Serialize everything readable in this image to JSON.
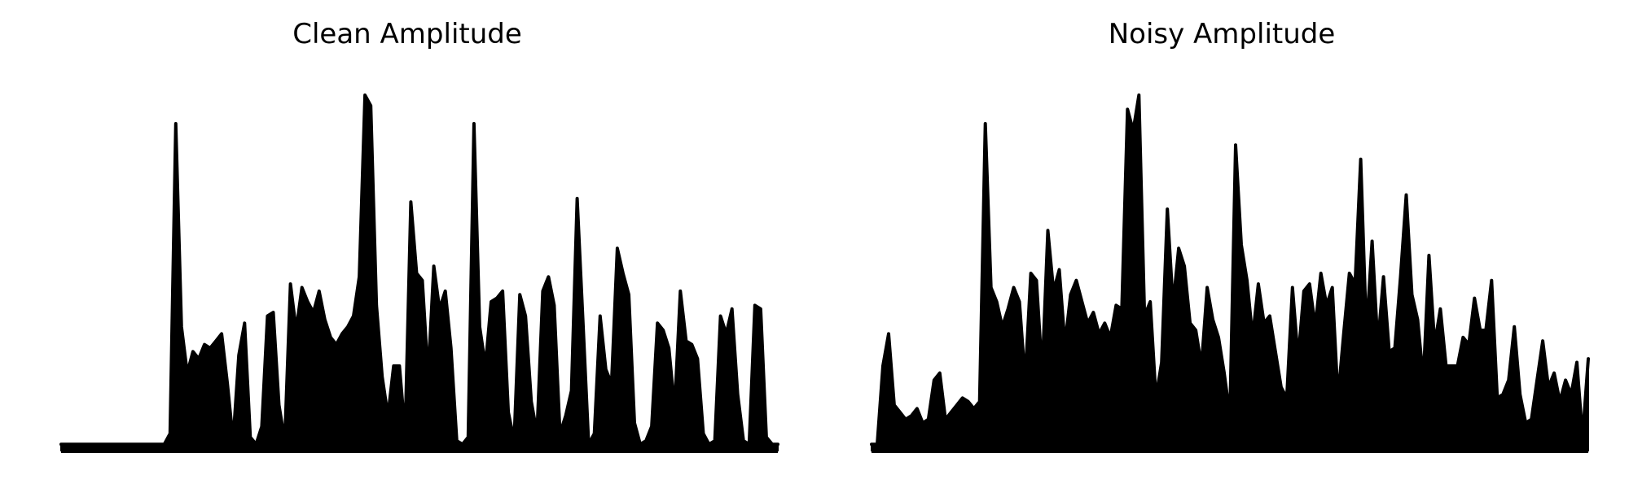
{
  "chart_data": [
    {
      "type": "line",
      "title": "Clean Amplitude",
      "xlabel": "",
      "ylabel": "",
      "axes_visible": false,
      "grid": false,
      "color": "#000000",
      "series": [
        {
          "values": [
            0.02,
            0.02,
            0.02,
            0.02,
            0.02,
            0.02,
            0.02,
            0.02,
            0.02,
            0.02,
            0.02,
            0.02,
            0.02,
            0.02,
            0.02,
            0.02,
            0.02,
            0.02,
            0.02,
            0.05,
            0.92,
            0.35,
            0.22,
            0.28,
            0.26,
            0.3,
            0.29,
            0.31,
            0.33,
            0.19,
            0.03,
            0.27,
            0.36,
            0.04,
            0.02,
            0.07,
            0.38,
            0.39,
            0.13,
            0.03,
            0.47,
            0.34,
            0.46,
            0.42,
            0.39,
            0.45,
            0.37,
            0.32,
            0.3,
            0.33,
            0.35,
            0.38,
            0.49,
            1.0,
            0.97,
            0.41,
            0.21,
            0.1,
            0.24,
            0.24,
            0.05,
            0.7,
            0.5,
            0.48,
            0.21,
            0.52,
            0.4,
            0.45,
            0.29,
            0.03,
            0.02,
            0.04,
            0.92,
            0.35,
            0.24,
            0.42,
            0.43,
            0.45,
            0.11,
            0.03,
            0.44,
            0.38,
            0.14,
            0.05,
            0.45,
            0.49,
            0.41,
            0.05,
            0.1,
            0.17,
            0.71,
            0.37,
            0.02,
            0.05,
            0.38,
            0.23,
            0.19,
            0.57,
            0.5,
            0.44,
            0.08,
            0.02,
            0.03,
            0.07,
            0.36,
            0.34,
            0.29,
            0.12,
            0.45,
            0.31,
            0.3,
            0.26,
            0.05,
            0.02,
            0.03,
            0.38,
            0.33,
            0.4,
            0.16,
            0.03,
            0.02,
            0.41,
            0.4,
            0.04,
            0.02,
            0.02
          ]
        }
      ],
      "ylim": [
        0,
        1.05
      ]
    },
    {
      "type": "line",
      "title": "Noisy Amplitude",
      "xlabel": "",
      "ylabel": "",
      "axes_visible": false,
      "grid": false,
      "color": "#000000",
      "series": [
        {
          "values": [
            0.02,
            0.02,
            0.24,
            0.33,
            0.13,
            0.11,
            0.09,
            0.1,
            0.12,
            0.08,
            0.09,
            0.2,
            0.22,
            0.09,
            0.11,
            0.13,
            0.15,
            0.14,
            0.12,
            0.14,
            0.92,
            0.46,
            0.42,
            0.35,
            0.4,
            0.46,
            0.42,
            0.2,
            0.5,
            0.48,
            0.22,
            0.62,
            0.45,
            0.51,
            0.3,
            0.44,
            0.48,
            0.42,
            0.36,
            0.39,
            0.33,
            0.36,
            0.32,
            0.41,
            0.4,
            0.96,
            0.9,
            1.0,
            0.38,
            0.42,
            0.15,
            0.25,
            0.68,
            0.41,
            0.57,
            0.52,
            0.36,
            0.34,
            0.24,
            0.46,
            0.37,
            0.32,
            0.22,
            0.1,
            0.86,
            0.58,
            0.48,
            0.32,
            0.47,
            0.36,
            0.38,
            0.28,
            0.18,
            0.15,
            0.46,
            0.26,
            0.45,
            0.47,
            0.35,
            0.5,
            0.41,
            0.46,
            0.15,
            0.33,
            0.5,
            0.47,
            0.82,
            0.33,
            0.59,
            0.3,
            0.49,
            0.28,
            0.29,
            0.49,
            0.72,
            0.44,
            0.37,
            0.2,
            0.55,
            0.3,
            0.4,
            0.24,
            0.24,
            0.24,
            0.32,
            0.3,
            0.43,
            0.34,
            0.34,
            0.48,
            0.15,
            0.16,
            0.2,
            0.35,
            0.16,
            0.08,
            0.09,
            0.2,
            0.31,
            0.18,
            0.22,
            0.14,
            0.2,
            0.16,
            0.25,
            0.04,
            0.26
          ]
        }
      ],
      "ylim": [
        0,
        1.05
      ]
    }
  ]
}
